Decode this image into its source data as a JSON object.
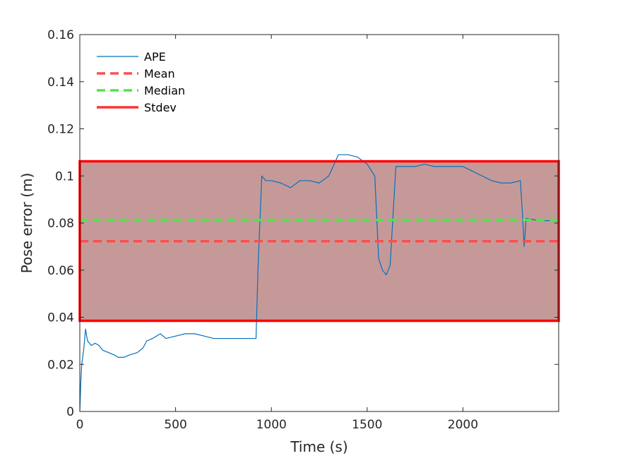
{
  "chart_data": {
    "type": "line",
    "title": "",
    "xlabel": "Time (s)",
    "ylabel": "Pose error (m)",
    "xlim": [
      0,
      2500
    ],
    "ylim": [
      0,
      0.16
    ],
    "xticks": [
      0,
      500,
      1000,
      1500,
      2000
    ],
    "xtick_labels": [
      "0",
      "500",
      "1000",
      "1500",
      "2000"
    ],
    "yticks": [
      0,
      0.02,
      0.04,
      0.06,
      0.08,
      0.1,
      0.12,
      0.14,
      0.16
    ],
    "ytick_labels": [
      "0",
      "0.02",
      "0.04",
      "0.06",
      "0.08",
      "0.1",
      "0.12",
      "0.14",
      "0.16"
    ],
    "grid": false,
    "legend_position": "top-left",
    "series": [
      {
        "name": "APE",
        "color": "#0072BD",
        "style": "solid-thin",
        "x": [
          0,
          5,
          10,
          20,
          30,
          40,
          50,
          60,
          80,
          100,
          120,
          150,
          180,
          200,
          230,
          260,
          300,
          330,
          350,
          380,
          400,
          420,
          450,
          500,
          550,
          600,
          650,
          700,
          750,
          800,
          850,
          900,
          920,
          930,
          940,
          950,
          970,
          1000,
          1050,
          1100,
          1150,
          1200,
          1250,
          1300,
          1350,
          1400,
          1450,
          1500,
          1540,
          1560,
          1580,
          1600,
          1620,
          1650,
          1700,
          1750,
          1800,
          1850,
          1900,
          1950,
          2000,
          2050,
          2100,
          2150,
          2200,
          2250,
          2300,
          2310,
          2320,
          2330,
          2400,
          2500
        ],
        "y": [
          0.0,
          0.012,
          0.02,
          0.026,
          0.035,
          0.03,
          0.029,
          0.028,
          0.029,
          0.028,
          0.026,
          0.025,
          0.024,
          0.023,
          0.023,
          0.024,
          0.025,
          0.027,
          0.03,
          0.031,
          0.032,
          0.033,
          0.031,
          0.032,
          0.033,
          0.033,
          0.032,
          0.031,
          0.031,
          0.031,
          0.031,
          0.031,
          0.031,
          0.06,
          0.08,
          0.1,
          0.098,
          0.098,
          0.097,
          0.095,
          0.098,
          0.098,
          0.097,
          0.1,
          0.109,
          0.109,
          0.108,
          0.105,
          0.1,
          0.065,
          0.06,
          0.058,
          0.062,
          0.104,
          0.104,
          0.104,
          0.105,
          0.104,
          0.104,
          0.104,
          0.104,
          0.102,
          0.1,
          0.098,
          0.097,
          0.097,
          0.098,
          0.085,
          0.07,
          0.082,
          0.081,
          0.081
        ]
      }
    ],
    "stats": {
      "mean": 0.0723,
      "median": 0.0813,
      "stdev_band": [
        0.0385,
        0.1062
      ]
    },
    "legend": [
      {
        "label": "APE",
        "color": "#0072BD",
        "style": "line-thin"
      },
      {
        "label": "Mean",
        "color": "#FF4D4D",
        "style": "dashed"
      },
      {
        "label": "Median",
        "color": "#4DE64D",
        "style": "dashed"
      },
      {
        "label": "Stdev",
        "color": "#FF3333",
        "style": "line-thick"
      }
    ],
    "colors": {
      "ape": "#0072BD",
      "ape_dense": "#2F4A80",
      "mean": "#FF4D4D",
      "median": "#4DE64D",
      "stdev_edge": "#FF0000",
      "stdev_fill": "#C69999"
    }
  }
}
